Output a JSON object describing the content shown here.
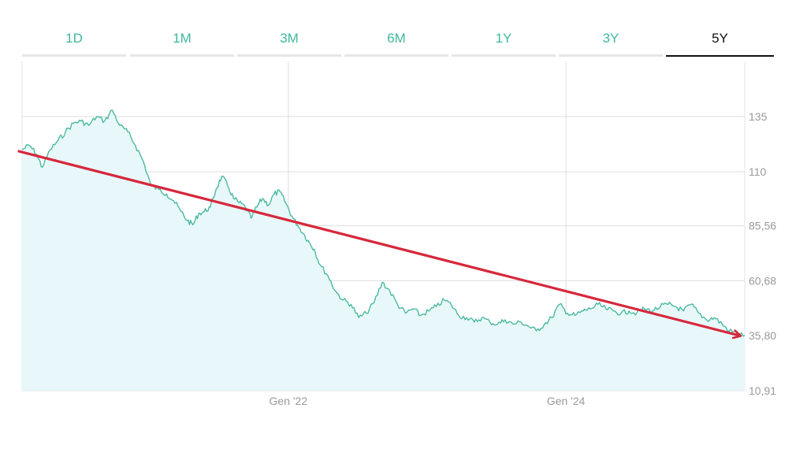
{
  "tabs": [
    {
      "label": "1D",
      "active": false
    },
    {
      "label": "1M",
      "active": false
    },
    {
      "label": "3M",
      "active": false
    },
    {
      "label": "6M",
      "active": false
    },
    {
      "label": "1Y",
      "active": false
    },
    {
      "label": "3Y",
      "active": false
    },
    {
      "label": "5Y",
      "active": true
    }
  ],
  "colors": {
    "accent": "#3fb89e",
    "line": "#4aba9f",
    "area": "#e8f8fa",
    "trend": "#d6283c",
    "grid": "#dedede"
  },
  "chart_data": {
    "type": "area",
    "title": "",
    "xlabel": "",
    "ylabel": "",
    "y_ticks": [
      "135",
      "110",
      "85,56",
      "60,68",
      "35,80",
      "10,91"
    ],
    "y_tick_values": [
      135,
      110,
      85.56,
      60.68,
      35.8,
      10.91
    ],
    "ylim": [
      10.91,
      160
    ],
    "x_ticks": [
      "Gen '22",
      "Gen '24"
    ],
    "x_tick_dates": [
      "2022-01-01",
      "2024-01-01"
    ],
    "xlim": [
      "2020-02-01",
      "2025-04-15"
    ],
    "grid": true,
    "legend": "none",
    "series": [
      {
        "values": [
          [
            "2020-02-01",
            120
          ],
          [
            "2020-02-20",
            122
          ],
          [
            "2020-03-10",
            118
          ],
          [
            "2020-03-25",
            112
          ],
          [
            "2020-04-15",
            120
          ],
          [
            "2020-05-05",
            124
          ],
          [
            "2020-05-25",
            128
          ],
          [
            "2020-06-15",
            132
          ],
          [
            "2020-07-05",
            133
          ],
          [
            "2020-07-25",
            131
          ],
          [
            "2020-08-15",
            135
          ],
          [
            "2020-09-05",
            133
          ],
          [
            "2020-09-25",
            138
          ],
          [
            "2020-10-15",
            131
          ],
          [
            "2020-11-05",
            128
          ],
          [
            "2020-11-25",
            122
          ],
          [
            "2020-12-15",
            115
          ],
          [
            "2021-01-05",
            104
          ],
          [
            "2021-01-25",
            102
          ],
          [
            "2021-02-15",
            100
          ],
          [
            "2021-03-05",
            97
          ],
          [
            "2021-03-25",
            92
          ],
          [
            "2021-04-10",
            88
          ],
          [
            "2021-04-25",
            86
          ],
          [
            "2021-05-10",
            91
          ],
          [
            "2021-05-25",
            92
          ],
          [
            "2021-06-10",
            94
          ],
          [
            "2021-06-25",
            102
          ],
          [
            "2021-07-10",
            108
          ],
          [
            "2021-07-25",
            104
          ],
          [
            "2021-08-10",
            98
          ],
          [
            "2021-08-25",
            96
          ],
          [
            "2021-09-10",
            94
          ],
          [
            "2021-09-25",
            89
          ],
          [
            "2021-10-10",
            94
          ],
          [
            "2021-10-25",
            98
          ],
          [
            "2021-11-10",
            95
          ],
          [
            "2021-11-25",
            100
          ],
          [
            "2021-12-10",
            101
          ],
          [
            "2021-12-25",
            96
          ],
          [
            "2022-01-10",
            90
          ],
          [
            "2022-01-25",
            86
          ],
          [
            "2022-02-10",
            82
          ],
          [
            "2022-02-25",
            78
          ],
          [
            "2022-03-10",
            75
          ],
          [
            "2022-03-25",
            68
          ],
          [
            "2022-04-15",
            63
          ],
          [
            "2022-05-05",
            56
          ],
          [
            "2022-05-25",
            52
          ],
          [
            "2022-06-15",
            50
          ],
          [
            "2022-07-05",
            44
          ],
          [
            "2022-07-25",
            46
          ],
          [
            "2022-08-15",
            51
          ],
          [
            "2022-09-05",
            60
          ],
          [
            "2022-09-25",
            56
          ],
          [
            "2022-10-15",
            50
          ],
          [
            "2022-11-05",
            46
          ],
          [
            "2022-11-25",
            48
          ],
          [
            "2022-12-15",
            45
          ],
          [
            "2023-01-05",
            47
          ],
          [
            "2023-01-25",
            49
          ],
          [
            "2023-02-15",
            52
          ],
          [
            "2023-03-05",
            50
          ],
          [
            "2023-03-25",
            45
          ],
          [
            "2023-04-15",
            44
          ],
          [
            "2023-05-05",
            42
          ],
          [
            "2023-05-25",
            44
          ],
          [
            "2023-06-15",
            42
          ],
          [
            "2023-07-05",
            41
          ],
          [
            "2023-07-25",
            43
          ],
          [
            "2023-08-15",
            41
          ],
          [
            "2023-09-05",
            42
          ],
          [
            "2023-09-25",
            40
          ],
          [
            "2023-10-15",
            38
          ],
          [
            "2023-11-05",
            41
          ],
          [
            "2023-11-25",
            44
          ],
          [
            "2023-12-15",
            50
          ],
          [
            "2024-01-05",
            46
          ],
          [
            "2024-01-25",
            45
          ],
          [
            "2024-02-15",
            47
          ],
          [
            "2024-03-05",
            48
          ],
          [
            "2024-03-25",
            50
          ],
          [
            "2024-04-15",
            48
          ],
          [
            "2024-05-05",
            47
          ],
          [
            "2024-05-25",
            46
          ],
          [
            "2024-06-15",
            47
          ],
          [
            "2024-07-05",
            46
          ],
          [
            "2024-07-25",
            48
          ],
          [
            "2024-08-15",
            47
          ],
          [
            "2024-09-05",
            49
          ],
          [
            "2024-09-25",
            50
          ],
          [
            "2024-10-15",
            49
          ],
          [
            "2024-11-05",
            47
          ],
          [
            "2024-11-25",
            50
          ],
          [
            "2024-12-15",
            46
          ],
          [
            "2025-01-05",
            43
          ],
          [
            "2025-01-25",
            44
          ],
          [
            "2025-02-15",
            41
          ],
          [
            "2025-03-05",
            38
          ],
          [
            "2025-03-25",
            37
          ],
          [
            "2025-04-15",
            36
          ]
        ]
      }
    ],
    "annotations": [
      {
        "type": "trend-arrow",
        "from": [
          "2020-02-01",
          120
        ],
        "to": [
          "2025-04-15",
          35.8
        ]
      }
    ]
  }
}
